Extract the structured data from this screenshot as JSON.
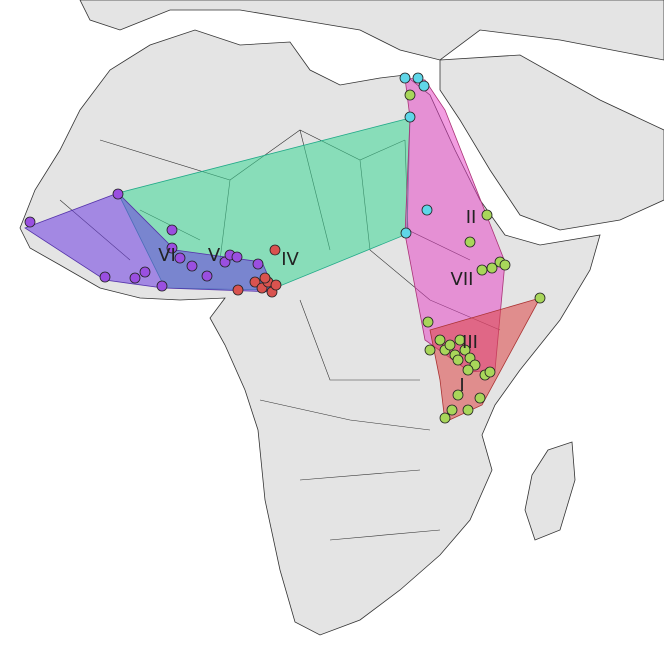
{
  "regions": [
    {
      "label": "I"
    },
    {
      "label": "II"
    },
    {
      "label": "III"
    },
    {
      "label": "IV"
    },
    {
      "label": "V"
    },
    {
      "label": "VI"
    },
    {
      "label": "VII"
    }
  ]
}
